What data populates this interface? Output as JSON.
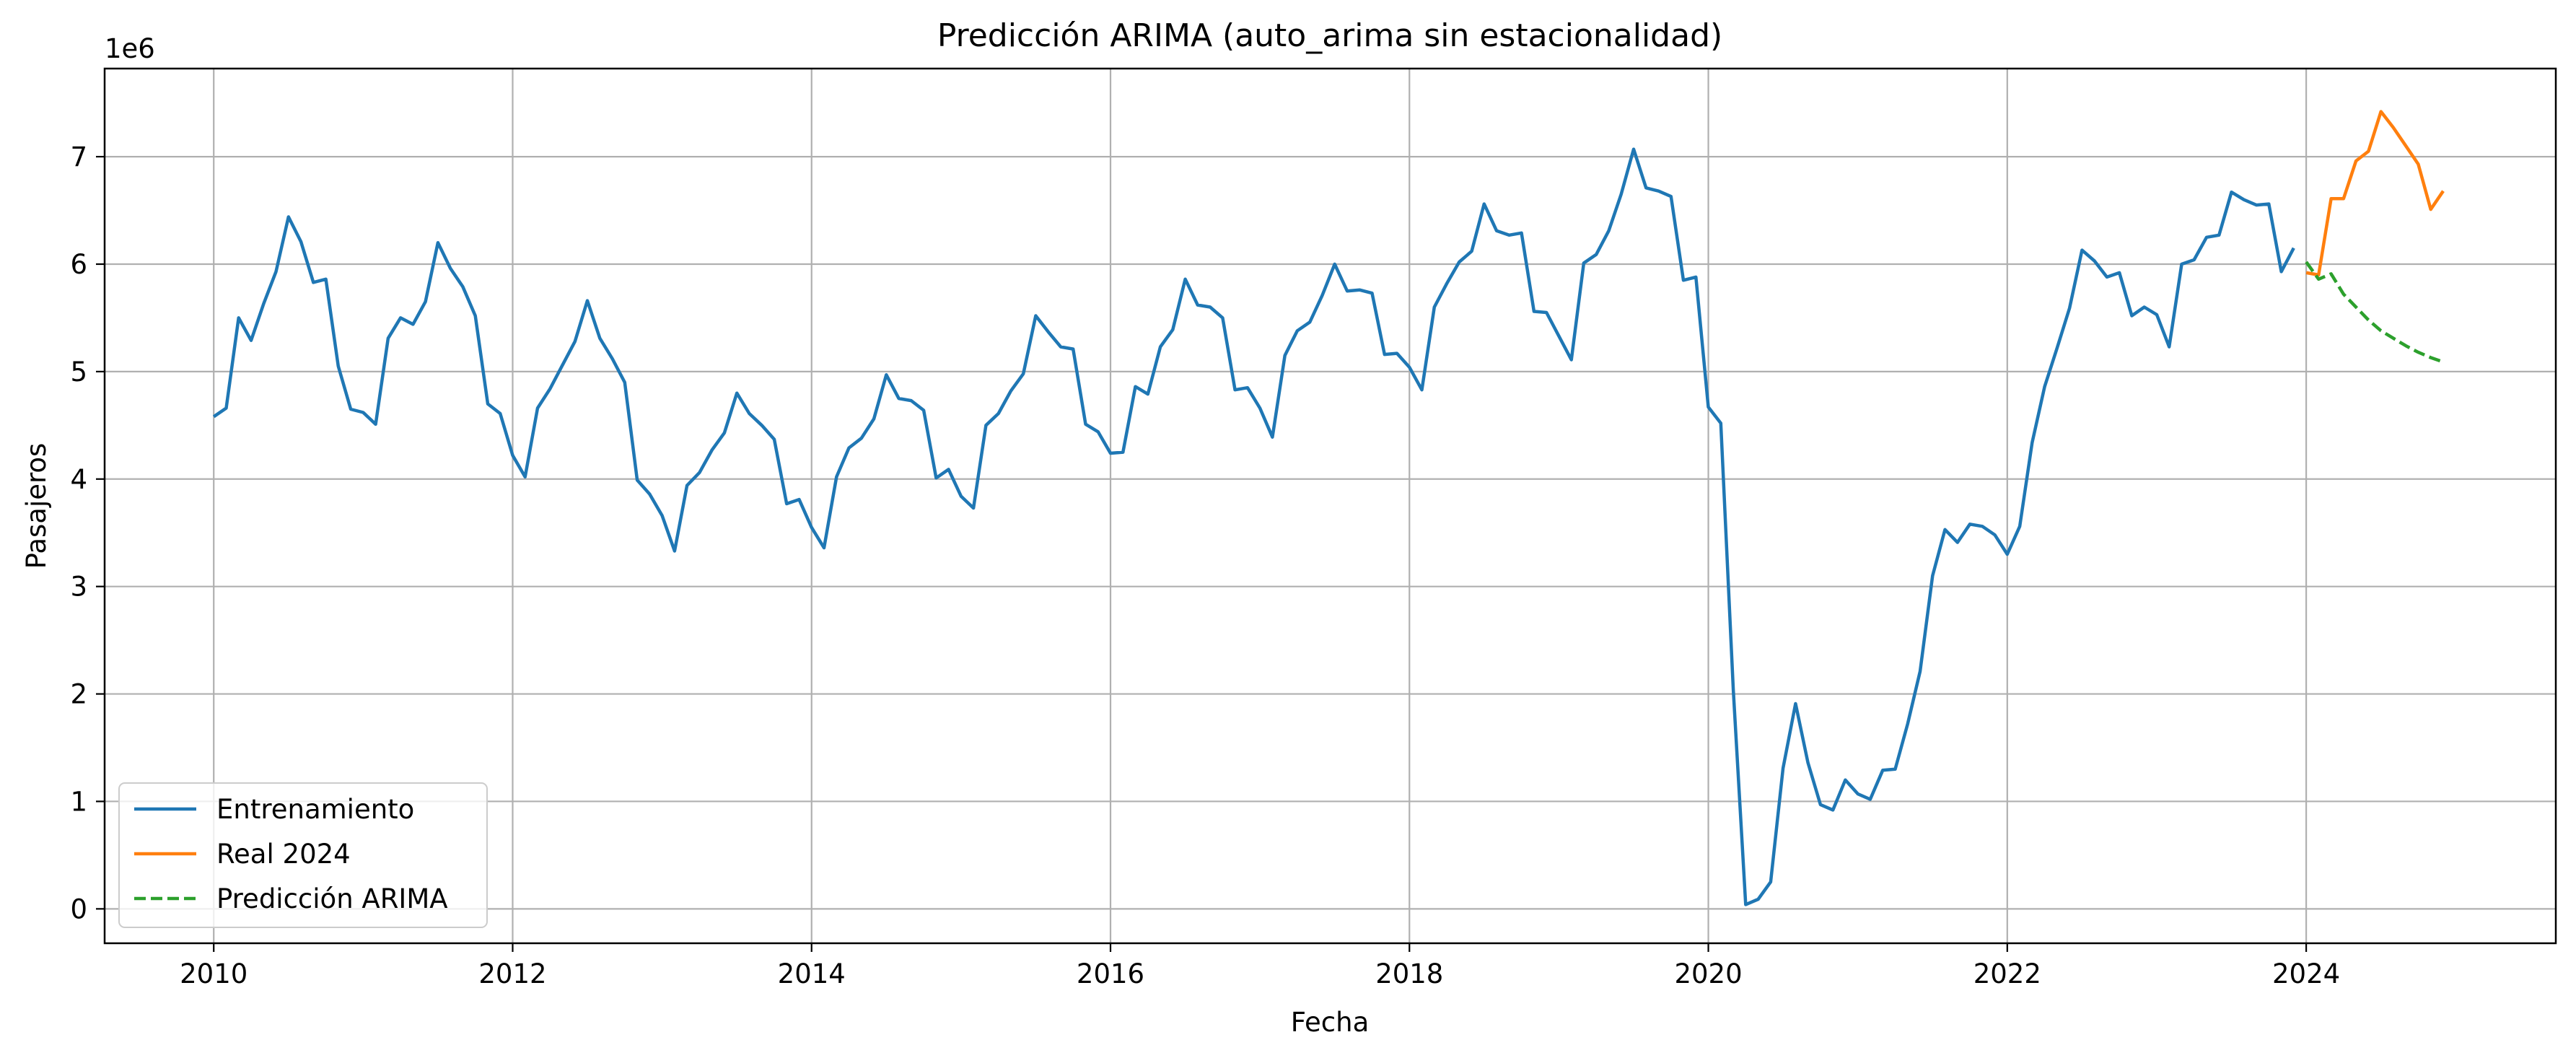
{
  "chart_data": {
    "type": "line",
    "title": "Predicción ARIMA (auto_arima sin estacionalidad)",
    "xlabel": "Fecha",
    "ylabel": "Pasajeros",
    "y_offset_label": "1e6",
    "xlim": [
      2009.27,
      2025.67
    ],
    "ylim": [
      -0.32,
      7.82
    ],
    "x_ticks": [
      2010,
      2012,
      2014,
      2016,
      2018,
      2020,
      2022,
      2024
    ],
    "y_ticks": [
      0,
      1,
      2,
      3,
      4,
      5,
      6,
      7
    ],
    "grid": true,
    "legend_position": "lower-left",
    "series": [
      {
        "name": "Entrenamiento",
        "color": "#1f77b4",
        "style": "solid",
        "start": 2010,
        "step": 0.08333333,
        "values": [
          4.58,
          4.66,
          5.5,
          5.29,
          5.63,
          5.93,
          6.44,
          6.21,
          5.83,
          5.86,
          5.05,
          4.65,
          4.62,
          4.51,
          5.31,
          5.5,
          5.44,
          5.65,
          6.2,
          5.96,
          5.79,
          5.52,
          4.7,
          4.61,
          4.22,
          4.02,
          4.66,
          4.84,
          5.06,
          5.28,
          5.66,
          5.31,
          5.12,
          4.9,
          3.99,
          3.86,
          3.66,
          3.33,
          3.94,
          4.06,
          4.27,
          4.43,
          4.8,
          4.61,
          4.5,
          4.37,
          3.77,
          3.81,
          3.55,
          3.36,
          4.02,
          4.29,
          4.38,
          4.56,
          4.97,
          4.75,
          4.73,
          4.64,
          4.01,
          4.09,
          3.84,
          3.73,
          4.5,
          4.61,
          4.82,
          4.98,
          5.52,
          5.37,
          5.23,
          5.21,
          4.51,
          4.44,
          4.24,
          4.25,
          4.86,
          4.79,
          5.23,
          5.39,
          5.86,
          5.62,
          5.6,
          5.5,
          4.83,
          4.85,
          4.66,
          4.39,
          5.15,
          5.38,
          5.46,
          5.71,
          6.0,
          5.75,
          5.76,
          5.73,
          5.16,
          5.17,
          5.04,
          4.83,
          5.6,
          5.82,
          6.02,
          6.12,
          6.56,
          6.31,
          6.27,
          6.29,
          5.56,
          5.55,
          5.33,
          5.11,
          6.01,
          6.09,
          6.31,
          6.65,
          7.07,
          6.71,
          6.68,
          6.63,
          5.85,
          5.88,
          4.67,
          4.52,
          2.04,
          0.04,
          0.09,
          0.25,
          1.31,
          1.91,
          1.36,
          0.97,
          0.92,
          1.2,
          1.07,
          1.02,
          1.29,
          1.3,
          1.72,
          2.21,
          3.1,
          3.53,
          3.41,
          3.58,
          3.56,
          3.48,
          3.3,
          3.56,
          4.34,
          4.86,
          5.22,
          5.59,
          6.13,
          6.03,
          5.88,
          5.92,
          5.52,
          5.6,
          5.53,
          5.23,
          6.0,
          6.04,
          6.25,
          6.27,
          6.67,
          6.6,
          6.55,
          6.56,
          5.93,
          6.15
        ]
      },
      {
        "name": "Real 2024",
        "color": "#ff7f0e",
        "style": "solid",
        "start": 2024,
        "step": 0.08333333,
        "values": [
          5.92,
          5.9,
          6.61,
          6.61,
          6.96,
          7.05,
          7.42,
          7.27,
          7.1,
          6.93,
          6.51,
          6.68
        ]
      },
      {
        "name": "Predicción ARIMA",
        "color": "#2ca02c",
        "style": "dashed",
        "start": 2024,
        "step": 0.08333333,
        "values": [
          6.02,
          5.86,
          5.91,
          5.72,
          5.6,
          5.48,
          5.38,
          5.31,
          5.24,
          5.18,
          5.13,
          5.09
        ]
      }
    ]
  }
}
